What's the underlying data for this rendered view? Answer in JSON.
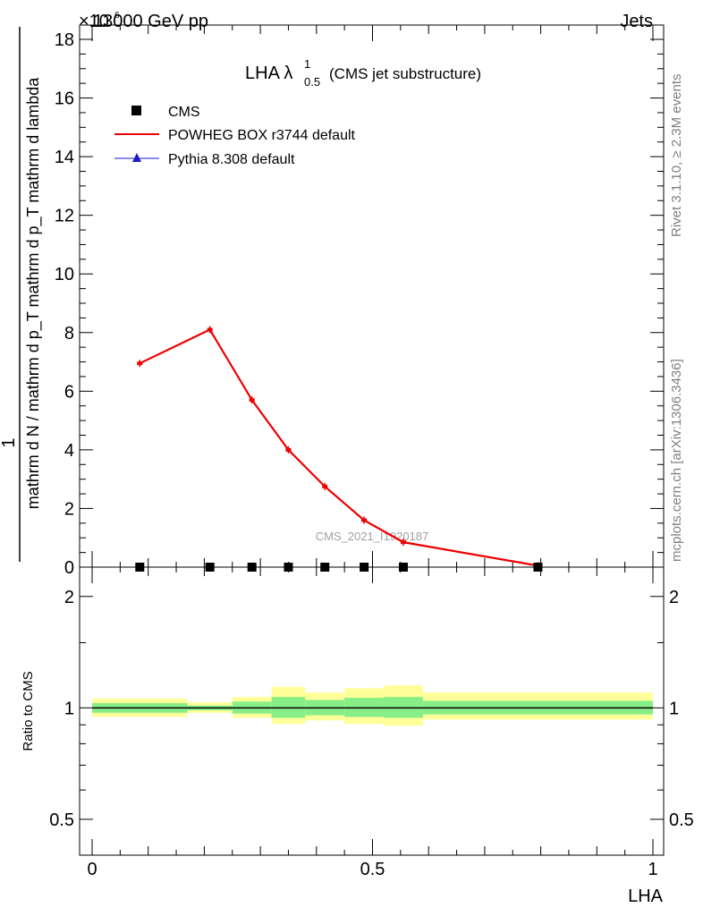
{
  "header": {
    "left": "13000 GeV pp",
    "right": "Jets",
    "exponent": "×10"
  },
  "side_text": {
    "rivet": "Rivet 3.1.10, ≥ 2.3M events",
    "mcplots": "mcplots.cern.ch [arXiv:1306.3436]"
  },
  "watermark": "CMS_2021_I1920187",
  "chart_data": [
    {
      "type": "line",
      "title_main": "LHA λ",
      "title_sup": "1",
      "title_sub": "0.5",
      "title_tail": "(CMS jet substructure)",
      "ylabel_top": "1",
      "ylabel_bottom": "mathrm d N / mathrm d p_T mathrm d p_T mathrm d lambda",
      "ylabel_numerator": "mathrm d²N",
      "ylim": [
        0,
        18
      ],
      "y_ticks": [
        "0",
        "2",
        "4",
        "6",
        "8",
        "10",
        "12",
        "14",
        "16",
        "18"
      ],
      "xlim": [
        0,
        1
      ],
      "legend_position": "top-left",
      "series": [
        {
          "name": "CMS",
          "color": "#000000",
          "marker": "square",
          "x": [
            0.085,
            0.21,
            0.285,
            0.35,
            0.415,
            0.485,
            0.555,
            0.795
          ],
          "y": [
            0,
            0,
            0,
            0,
            0,
            0,
            0,
            0
          ]
        },
        {
          "name": "POWHEG BOX r3744 default",
          "color": "#ee0000",
          "marker": "line",
          "x": [
            0.085,
            0.21,
            0.285,
            0.35,
            0.415,
            0.485,
            0.555,
            0.795
          ],
          "y": [
            6.95,
            8.1,
            5.7,
            4.0,
            2.75,
            1.6,
            0.85,
            0.05
          ]
        },
        {
          "name": "Pythia 8.308 default",
          "color": "#1a1acc",
          "marker": "triangle",
          "x": [],
          "y": []
        }
      ]
    },
    {
      "type": "area",
      "ylabel": "Ratio to CMS",
      "xlabel": "LHA",
      "ylim": [
        0.4,
        2.4
      ],
      "y_ticks": [
        "0.5",
        "1",
        "2"
      ],
      "y_tick_values": [
        0.5,
        1,
        2
      ],
      "x_ticks": [
        "0",
        "0.5",
        "1"
      ],
      "x_tick_values": [
        0,
        0.5,
        1
      ],
      "reference": 1,
      "bins": [
        0,
        0.17,
        0.25,
        0.32,
        0.38,
        0.45,
        0.52,
        0.59,
        1.0
      ],
      "band_inner": [
        [
          0.97,
          1.03
        ],
        [
          0.985,
          1.015
        ],
        [
          0.965,
          1.04
        ],
        [
          0.94,
          1.07
        ],
        [
          0.955,
          1.05
        ],
        [
          0.945,
          1.065
        ],
        [
          0.94,
          1.07
        ],
        [
          0.96,
          1.045
        ]
      ],
      "band_outer": [
        [
          0.945,
          1.06
        ],
        [
          0.97,
          1.035
        ],
        [
          0.94,
          1.07
        ],
        [
          0.905,
          1.14
        ],
        [
          0.925,
          1.1
        ],
        [
          0.905,
          1.13
        ],
        [
          0.895,
          1.15
        ],
        [
          0.93,
          1.1
        ]
      ],
      "colors": {
        "inner": "#88ee88",
        "outer": "#ffff99",
        "line": "#000000"
      }
    }
  ]
}
